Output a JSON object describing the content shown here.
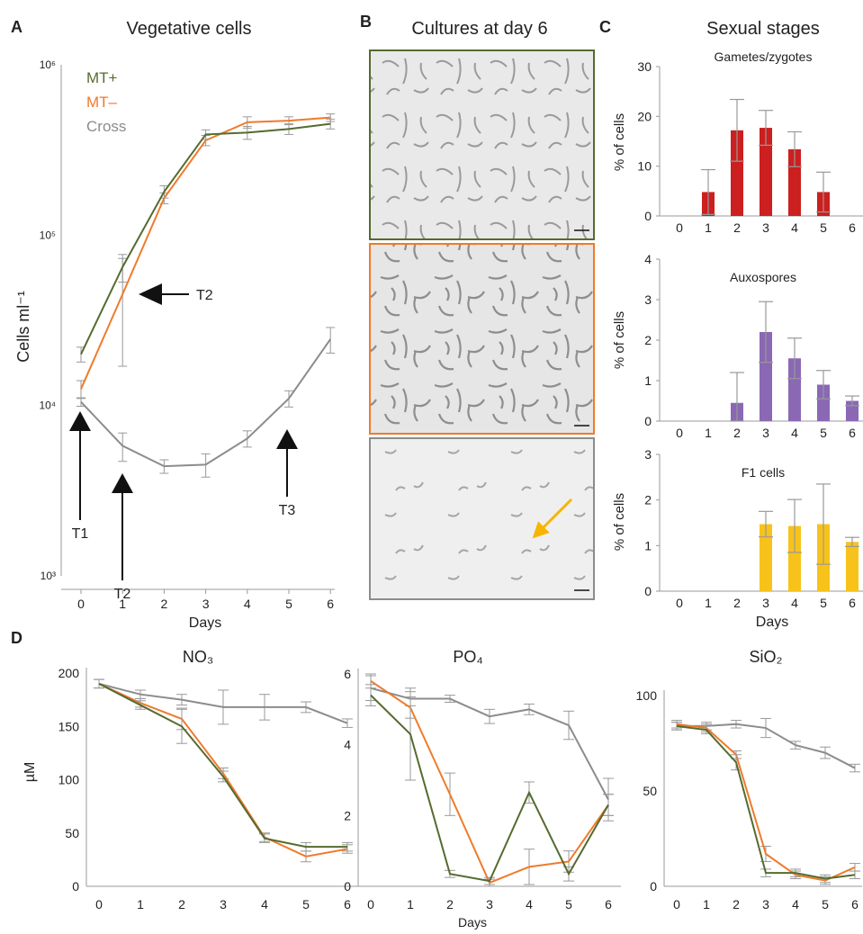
{
  "colors": {
    "mtplus": "#556b2f",
    "mtminus": "#f07a2a",
    "cross": "#8c8c8c",
    "gametes": "#cc1f1f",
    "auxospores": "#8a68b4",
    "f1": "#f7c31a",
    "arrow_yellow": "#f7b500"
  },
  "panels": {
    "A": {
      "letter": "A",
      "title": "Vegetative cells",
      "ylabel": "Cells ml⁻¹",
      "xlabel": "Days",
      "yticks": [
        "10⁶",
        "10⁵",
        "10⁴",
        "10³"
      ],
      "arrows": [
        "T1",
        "T2",
        "T3",
        "T2"
      ]
    },
    "B": {
      "letter": "B",
      "title": "Cultures at day 6"
    },
    "C": {
      "letter": "C",
      "title": "Sexual stages",
      "ylabel": "% of cells",
      "xlabel": "Days",
      "subtitles": [
        "Gametes/zygotes",
        "Auxospores",
        "F1 cells"
      ]
    },
    "D": {
      "letter": "D",
      "ylabel": "µM",
      "xlabel": "Days",
      "titles": [
        "NO₃",
        "PO₄",
        "SiO₂"
      ]
    }
  },
  "chart_data": [
    {
      "id": "A",
      "type": "line",
      "title": "Vegetative cells",
      "xlabel": "Days",
      "ylabel": "Cells ml⁻¹",
      "yscale": "log",
      "ylim": [
        1000,
        1000000
      ],
      "x": [
        0,
        1,
        2,
        3,
        4,
        5,
        6
      ],
      "legend": "top-left",
      "series": [
        {
          "name": "MT+",
          "values": [
            20000,
            65000,
            180000,
            390000,
            400000,
            420000,
            450000
          ],
          "err": [
            2000,
            12000,
            15000,
            25000,
            35000,
            30000,
            30000
          ]
        },
        {
          "name": "MT–",
          "values": [
            12500,
            45000,
            165000,
            360000,
            460000,
            470000,
            490000
          ],
          "err": [
            1500,
            28000,
            12000,
            25000,
            35000,
            25000,
            25000
          ]
        },
        {
          "name": "Cross",
          "values": [
            10500,
            5800,
            4400,
            4500,
            6400,
            11000,
            24500
          ],
          "err": [
            600,
            1100,
            400,
            700,
            700,
            1200,
            4200
          ]
        }
      ]
    },
    {
      "id": "C1",
      "type": "bar",
      "title": "Gametes/zygotes",
      "xlabel": "",
      "ylabel": "% of cells",
      "ylim": [
        0,
        30
      ],
      "yticks": [
        0,
        10,
        20,
        30
      ],
      "categories": [
        "0",
        "1",
        "2",
        "3",
        "4",
        "5",
        "6"
      ],
      "values": [
        0,
        4.8,
        17.2,
        17.7,
        13.4,
        4.8,
        0
      ],
      "err": [
        0,
        4.5,
        6.2,
        3.5,
        3.5,
        4.0,
        0
      ]
    },
    {
      "id": "C2",
      "type": "bar",
      "title": "Auxospores",
      "xlabel": "",
      "ylabel": "% of cells",
      "ylim": [
        0,
        4
      ],
      "yticks": [
        0,
        1,
        2,
        3,
        4
      ],
      "categories": [
        "0",
        "1",
        "2",
        "3",
        "4",
        "5",
        "6"
      ],
      "values": [
        0,
        0,
        0.45,
        2.2,
        1.55,
        0.9,
        0.5
      ],
      "err": [
        0,
        0,
        0.75,
        0.75,
        0.5,
        0.35,
        0.12
      ]
    },
    {
      "id": "C3",
      "type": "bar",
      "title": "F1 cells",
      "xlabel": "Days",
      "ylabel": "% of cells",
      "ylim": [
        0,
        3
      ],
      "yticks": [
        0,
        1,
        2,
        3
      ],
      "categories": [
        "0",
        "1",
        "2",
        "3",
        "4",
        "5",
        "6"
      ],
      "values": [
        0,
        0,
        0,
        1.47,
        1.43,
        1.47,
        1.08
      ],
      "err": [
        0,
        0,
        0,
        0.28,
        0.58,
        0.88,
        0.1
      ]
    },
    {
      "id": "D1",
      "type": "line",
      "title": "NO₃",
      "xlabel": "",
      "ylabel": "µM",
      "ylim": [
        0,
        200
      ],
      "yticks": [
        0,
        50,
        100,
        150,
        200
      ],
      "x": [
        0,
        1,
        2,
        3,
        4,
        5,
        6
      ],
      "series": [
        {
          "name": "",
          "role": "cross",
          "values": [
            190,
            180,
            175,
            168,
            168,
            168,
            153
          ],
          "err": [
            4,
            4,
            5,
            16,
            12,
            5,
            4
          ]
        },
        {
          "name": "",
          "role": "mtminus",
          "values": [
            190,
            172,
            157,
            106,
            46,
            28,
            35
          ],
          "err": [
            4,
            4,
            10,
            5,
            4,
            5,
            4
          ]
        },
        {
          "name": "",
          "role": "mtplus",
          "values": [
            190,
            170,
            150,
            103,
            45,
            37,
            37
          ],
          "err": [
            4,
            4,
            16,
            5,
            4,
            4,
            4
          ]
        }
      ]
    },
    {
      "id": "D2",
      "type": "line",
      "title": "PO₄",
      "xlabel": "Days",
      "ylabel": "",
      "ylim": [
        0,
        6
      ],
      "yticks": [
        0,
        2,
        4,
        6
      ],
      "x": [
        0,
        1,
        2,
        3,
        4,
        5,
        6
      ],
      "series": [
        {
          "name": "",
          "role": "cross",
          "values": [
            5.6,
            5.3,
            5.3,
            4.8,
            5.0,
            4.55,
            2.45
          ],
          "err": [
            0.35,
            0.2,
            0.1,
            0.2,
            0.15,
            0.4,
            0.6
          ]
        },
        {
          "name": "",
          "role": "mtminus",
          "values": [
            5.8,
            5.05,
            2.6,
            0.1,
            0.55,
            0.7,
            2.3
          ],
          "err": [
            0.2,
            0.3,
            0.6,
            0.1,
            0.5,
            0.3,
            0.3
          ]
        },
        {
          "name": "",
          "role": "mtplus",
          "values": [
            5.4,
            4.3,
            0.35,
            0.15,
            2.65,
            0.35,
            2.3
          ],
          "err": [
            0.3,
            1.3,
            0.1,
            0.1,
            0.3,
            0.2,
            0.3
          ]
        }
      ]
    },
    {
      "id": "D3",
      "type": "line",
      "title": "SiO₂",
      "xlabel": "",
      "ylabel": "",
      "ylim": [
        0,
        100
      ],
      "yticks": [
        0,
        50,
        100
      ],
      "x": [
        0,
        1,
        2,
        3,
        4,
        5,
        6
      ],
      "series": [
        {
          "name": "",
          "role": "cross",
          "values": [
            84,
            84,
            85,
            83,
            74,
            70,
            62
          ],
          "err": [
            2,
            2,
            2,
            5,
            2,
            3,
            2
          ]
        },
        {
          "name": "",
          "role": "mtminus",
          "values": [
            85,
            83,
            69,
            17,
            6,
            3,
            10
          ],
          "err": [
            2,
            2,
            2,
            4,
            2,
            2,
            2
          ]
        },
        {
          "name": "",
          "role": "mtplus",
          "values": [
            84,
            82,
            65,
            7,
            7,
            4,
            6
          ],
          "err": [
            2,
            2,
            4,
            2,
            2,
            2,
            2
          ]
        }
      ]
    }
  ]
}
